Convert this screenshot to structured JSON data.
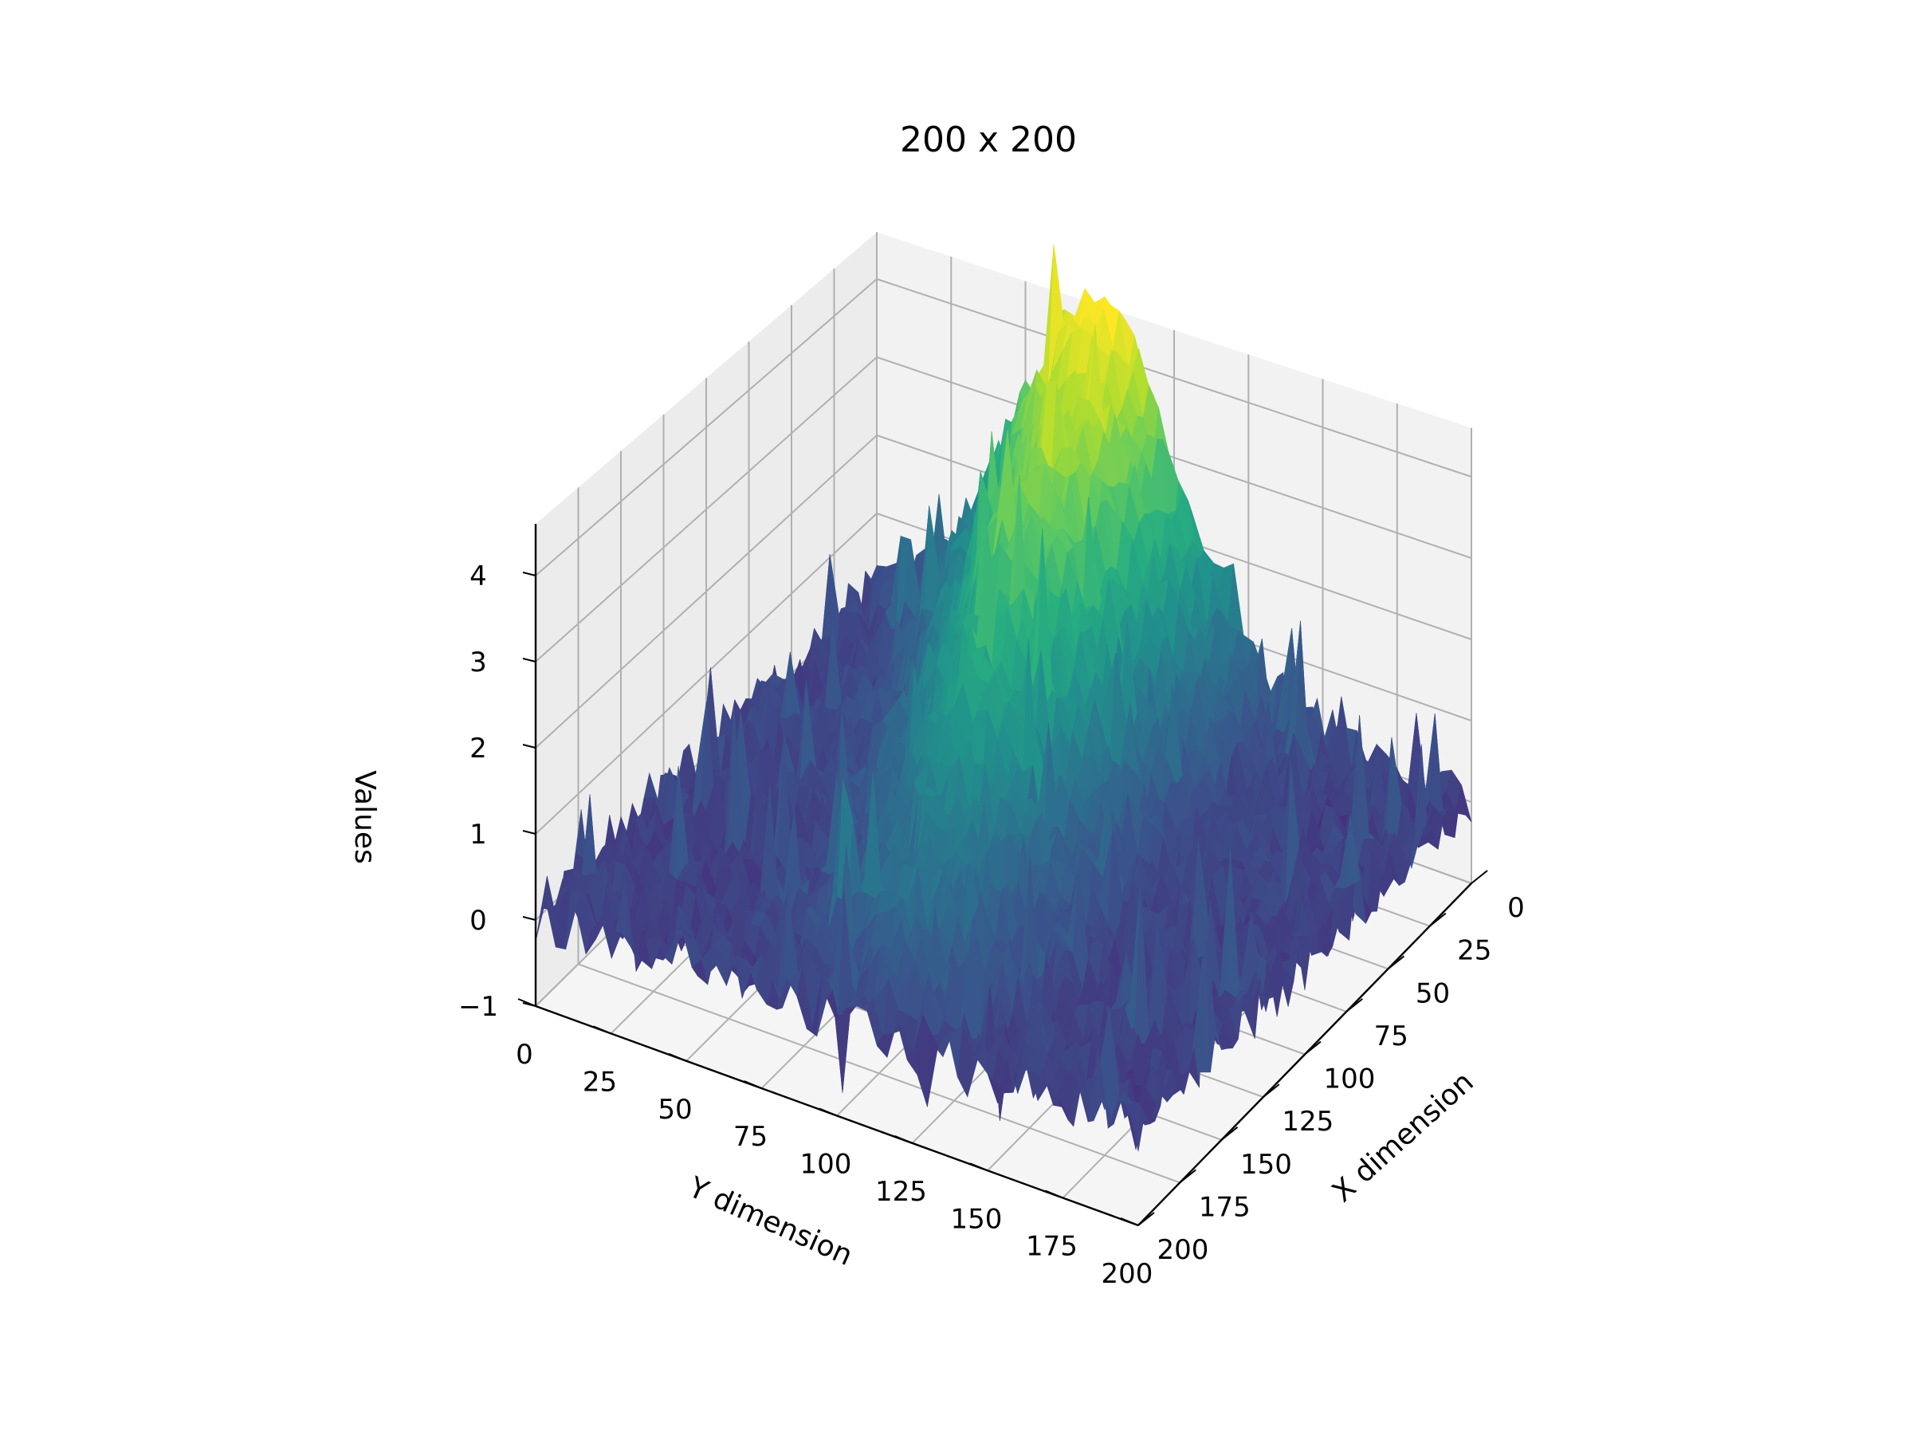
{
  "chart_data": {
    "type": "surface3d",
    "title": "200 x 200",
    "xlabel": "X dimension",
    "ylabel": "Y dimension",
    "zlabel": "Values",
    "xlim": [
      0,
      200
    ],
    "ylim": [
      0,
      200
    ],
    "zlim": [
      -1,
      4.6
    ],
    "x_ticks": [
      "0",
      "25",
      "50",
      "75",
      "100",
      "125",
      "150",
      "175",
      "200"
    ],
    "y_ticks": [
      "0",
      "25",
      "50",
      "75",
      "100",
      "125",
      "150",
      "175",
      "200"
    ],
    "z_ticks": [
      "−1",
      "0",
      "1",
      "2",
      "3",
      "4"
    ],
    "x_tick_values": [
      0,
      25,
      50,
      75,
      100,
      125,
      150,
      175,
      200
    ],
    "y_tick_values": [
      0,
      25,
      50,
      75,
      100,
      125,
      150,
      175,
      200
    ],
    "z_tick_values": [
      -1,
      0,
      1,
      2,
      3,
      4
    ],
    "grid": true,
    "colormap": "viridis",
    "surface_description": "Noisy 200x200 grid with a ridge rising diagonally from around (X=150, Y=100) up to a peak of about 4.5 near X=0, Y=75; elsewhere values near 0 with spikes between -1 and 1",
    "ridge": {
      "peak_value": 4.5,
      "base_value": 0.1,
      "noise_amplitude": 0.35
    },
    "colors": {
      "pane": "#f2f2f2",
      "grid": "#b0b0b0",
      "viridis": [
        "#440154",
        "#472c7a",
        "#3b518b",
        "#2c718e",
        "#21918c",
        "#28ae80",
        "#5ec962",
        "#addc30",
        "#fde725"
      ]
    }
  }
}
